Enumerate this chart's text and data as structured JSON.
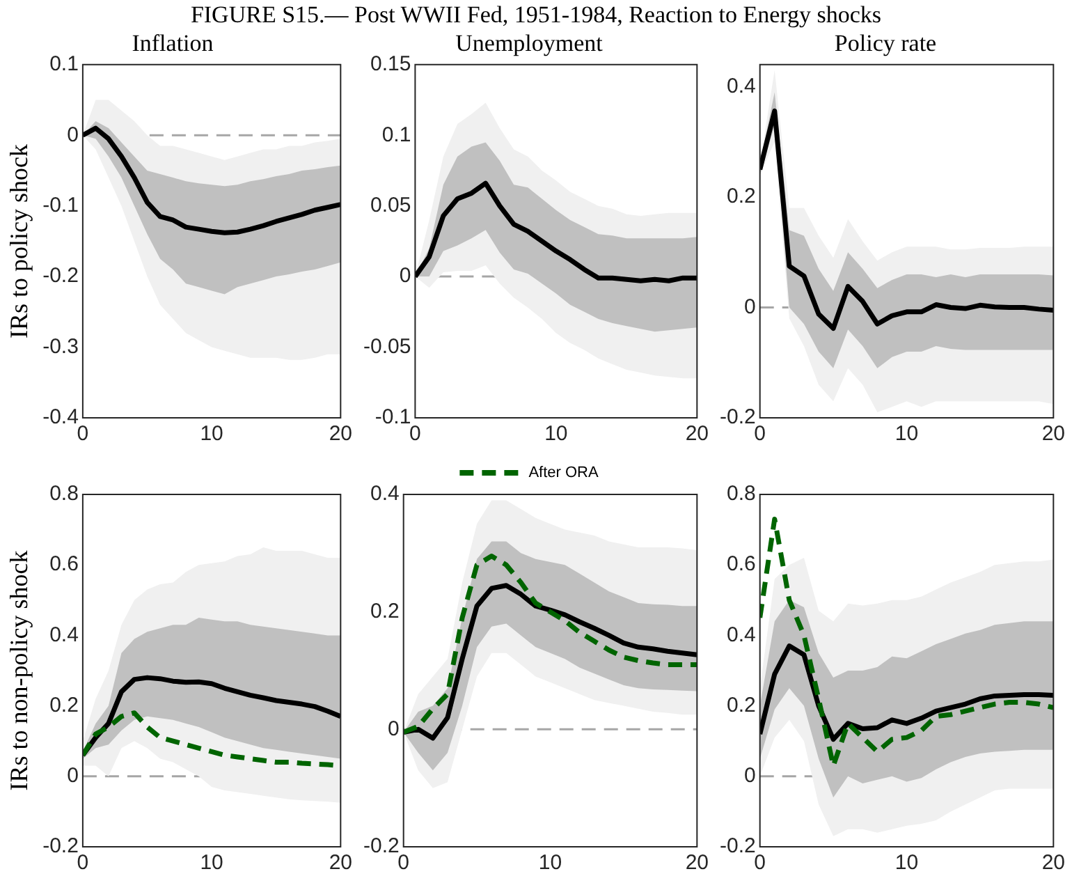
{
  "chart_data": [
    {
      "type": "other",
      "title": "FIGURE S15.— Post WWII Fed, 1951-1984, Reaction to Energy shocks"
    },
    {
      "type": "line",
      "title": "Inflation",
      "ylabel": "IRs to policy shock",
      "marker": "none",
      "grid": false,
      "x": [
        0,
        1,
        2,
        3,
        4,
        5,
        6,
        7,
        8,
        9,
        10,
        11,
        12,
        13,
        14,
        15,
        16,
        17,
        18,
        19,
        20
      ],
      "xlim": [
        0,
        20
      ],
      "xticks": [
        0,
        10,
        20
      ],
      "ylim": [
        -0.4,
        0.1
      ],
      "yticks": [
        -0.4,
        -0.3,
        -0.2,
        -0.1,
        0,
        0.1
      ],
      "ref_lines": [
        {
          "axis": "y",
          "value": 0,
          "color": "#a6a6a6",
          "line_style": "dashed"
        }
      ],
      "series": [
        {
          "color": "#f0f0f0",
          "values": [
            null,
            null,
            null,
            null,
            null,
            null,
            null,
            null,
            null,
            null,
            null,
            null,
            null,
            null,
            null,
            null,
            null,
            null,
            null,
            null,
            null
          ],
          "upper": [
            0,
            0.05,
            0.05,
            0.035,
            0.02,
            0,
            -0.015,
            -0.015,
            -0.02,
            -0.025,
            -0.03,
            -0.035,
            -0.03,
            -0.025,
            -0.02,
            -0.02,
            -0.015,
            -0.015,
            -0.01,
            -0.008,
            -0.005
          ],
          "lower": [
            0,
            -0.02,
            -0.06,
            -0.1,
            -0.15,
            -0.2,
            -0.24,
            -0.26,
            -0.28,
            -0.29,
            -0.3,
            -0.305,
            -0.31,
            -0.315,
            -0.315,
            -0.315,
            -0.318,
            -0.318,
            -0.315,
            -0.31,
            -0.31
          ]
        },
        {
          "color": "#c0c0c0",
          "values": [
            null,
            null,
            null,
            null,
            null,
            null,
            null,
            null,
            null,
            null,
            null,
            null,
            null,
            null,
            null,
            null,
            null,
            null,
            null,
            null,
            null
          ],
          "upper": [
            0,
            0.02,
            0.01,
            -0.01,
            -0.03,
            -0.05,
            -0.055,
            -0.06,
            -0.065,
            -0.068,
            -0.07,
            -0.072,
            -0.07,
            -0.065,
            -0.062,
            -0.058,
            -0.055,
            -0.05,
            -0.048,
            -0.045,
            -0.043
          ],
          "lower": [
            0,
            -0.005,
            -0.03,
            -0.06,
            -0.1,
            -0.14,
            -0.175,
            -0.19,
            -0.21,
            -0.215,
            -0.22,
            -0.225,
            -0.215,
            -0.21,
            -0.205,
            -0.2,
            -0.197,
            -0.193,
            -0.19,
            -0.185,
            -0.18
          ]
        },
        {
          "color": "#000000",
          "values": [
            0,
            0.01,
            -0.005,
            -0.03,
            -0.06,
            -0.095,
            -0.115,
            -0.12,
            -0.13,
            -0.133,
            -0.136,
            -0.138,
            -0.137,
            -0.133,
            -0.128,
            -0.122,
            -0.117,
            -0.112,
            -0.106,
            -0.102,
            -0.098
          ]
        }
      ]
    },
    {
      "type": "line",
      "title": "Unemployment",
      "marker": "none",
      "grid": false,
      "x": [
        0,
        1,
        2,
        3,
        4,
        5,
        6,
        7,
        8,
        9,
        10,
        11,
        12,
        13,
        14,
        15,
        16,
        17,
        18,
        19,
        20
      ],
      "xlim": [
        0,
        20
      ],
      "xticks": [
        0,
        10,
        20
      ],
      "ylim": [
        -0.1,
        0.15
      ],
      "yticks": [
        -0.1,
        -0.05,
        0,
        0.05,
        0.1,
        0.15
      ],
      "ref_lines": [
        {
          "axis": "y",
          "value": 0,
          "color": "#a6a6a6",
          "line_style": "dashed"
        }
      ],
      "series": [
        {
          "color": "#f0f0f0",
          "values": [
            null,
            null,
            null,
            null,
            null,
            null,
            null,
            null,
            null,
            null,
            null,
            null,
            null,
            null,
            null,
            null,
            null,
            null,
            null,
            null,
            null
          ],
          "upper": [
            0,
            0.04,
            0.085,
            0.108,
            0.115,
            0.123,
            0.105,
            0.09,
            0.085,
            0.075,
            0.068,
            0.06,
            0.055,
            0.05,
            0.048,
            0.044,
            0.043,
            0.044,
            0.045,
            0.045,
            0.045
          ],
          "lower": [
            0,
            -0.008,
            0.003,
            0.004,
            0.004,
            0.008,
            -0.005,
            -0.015,
            -0.022,
            -0.03,
            -0.04,
            -0.047,
            -0.052,
            -0.058,
            -0.062,
            -0.066,
            -0.068,
            -0.07,
            -0.071,
            -0.072,
            -0.072
          ]
        },
        {
          "color": "#c0c0c0",
          "values": [
            null,
            null,
            null,
            null,
            null,
            null,
            null,
            null,
            null,
            null,
            null,
            null,
            null,
            null,
            null,
            null,
            null,
            null,
            null,
            null,
            null
          ],
          "upper": [
            0,
            0.02,
            0.065,
            0.085,
            0.092,
            0.095,
            0.082,
            0.065,
            0.063,
            0.055,
            0.047,
            0.04,
            0.035,
            0.03,
            0.029,
            0.027,
            0.027,
            0.027,
            0.027,
            0.027,
            0.028
          ],
          "lower": [
            0,
            0,
            0.018,
            0.022,
            0.027,
            0.033,
            0.017,
            0.005,
            0.002,
            -0.005,
            -0.012,
            -0.02,
            -0.025,
            -0.03,
            -0.033,
            -0.035,
            -0.037,
            -0.039,
            -0.038,
            -0.037,
            -0.036
          ]
        },
        {
          "color": "#000000",
          "values": [
            0,
            0.014,
            0.043,
            0.055,
            0.059,
            0.066,
            0.05,
            0.037,
            0.032,
            0.025,
            0.018,
            0.012,
            0.005,
            -0.001,
            -0.001,
            -0.002,
            -0.003,
            -0.002,
            -0.003,
            -0.001,
            -0.001
          ]
        }
      ]
    },
    {
      "type": "line",
      "title": "Policy rate",
      "marker": "none",
      "grid": false,
      "x": [
        0,
        1,
        2,
        3,
        4,
        5,
        6,
        7,
        8,
        9,
        10,
        11,
        12,
        13,
        14,
        15,
        16,
        17,
        18,
        19,
        20
      ],
      "xlim": [
        0,
        20
      ],
      "xticks": [
        0,
        10,
        20
      ],
      "ylim": [
        -0.2,
        0.44
      ],
      "yticks": [
        -0.2,
        0,
        0.2,
        0.4
      ],
      "ref_lines": [
        {
          "axis": "y",
          "value": 0,
          "color": "#a6a6a6",
          "line_style": "dashed"
        }
      ],
      "series": [
        {
          "color": "#f0f0f0",
          "values": [
            null,
            null,
            null,
            null,
            null,
            null,
            null,
            null,
            null,
            null,
            null,
            null,
            null,
            null,
            null,
            null,
            null,
            null,
            null,
            null,
            null
          ],
          "upper": [
            0.26,
            0.43,
            0.18,
            0.18,
            0.13,
            0.09,
            0.16,
            0.12,
            0.085,
            0.1,
            0.11,
            0.11,
            0.11,
            0.105,
            0.105,
            0.108,
            0.108,
            0.108,
            0.11,
            0.11,
            0.11
          ],
          "lower": [
            0.24,
            0.3,
            -0.02,
            -0.07,
            -0.14,
            -0.17,
            -0.11,
            -0.14,
            -0.19,
            -0.18,
            -0.17,
            -0.18,
            -0.17,
            -0.17,
            -0.17,
            -0.17,
            -0.17,
            -0.17,
            -0.17,
            -0.17,
            -0.175
          ]
        },
        {
          "color": "#c0c0c0",
          "values": [
            null,
            null,
            null,
            null,
            null,
            null,
            null,
            null,
            null,
            null,
            null,
            null,
            null,
            null,
            null,
            null,
            null,
            null,
            null,
            null,
            null
          ],
          "upper": [
            0.26,
            0.39,
            0.14,
            0.13,
            0.07,
            0.03,
            0.1,
            0.07,
            0.035,
            0.05,
            0.06,
            0.06,
            0.055,
            0.06,
            0.055,
            0.06,
            0.06,
            0.06,
            0.06,
            0.06,
            0.058
          ],
          "lower": [
            0.24,
            0.33,
            0,
            -0.03,
            -0.08,
            -0.11,
            -0.04,
            -0.07,
            -0.11,
            -0.09,
            -0.08,
            -0.08,
            -0.07,
            -0.075,
            -0.077,
            -0.077,
            -0.077,
            -0.077,
            -0.077,
            -0.077,
            -0.077
          ]
        },
        {
          "color": "#000000",
          "values": [
            0.25,
            0.356,
            0.075,
            0.057,
            -0.012,
            -0.038,
            0.038,
            0.011,
            -0.03,
            -0.015,
            -0.008,
            -0.008,
            0.005,
            0,
            -0.002,
            0.004,
            0.001,
            0,
            0,
            -0.003,
            -0.005
          ]
        }
      ]
    },
    {
      "type": "line",
      "ylabel": "IRs to non-policy shock",
      "marker": "none",
      "grid": false,
      "x": [
        0,
        1,
        2,
        3,
        4,
        5,
        6,
        7,
        8,
        9,
        10,
        11,
        12,
        13,
        14,
        15,
        16,
        17,
        18,
        19,
        20
      ],
      "xlim": [
        0,
        20
      ],
      "xticks": [
        0,
        10,
        20
      ],
      "ylim": [
        -0.2,
        0.8
      ],
      "yticks": [
        -0.2,
        0,
        0.2,
        0.4,
        0.6,
        0.8
      ],
      "ref_lines": [
        {
          "axis": "y",
          "value": 0,
          "color": "#a6a6a6",
          "line_style": "dashed"
        }
      ],
      "series": [
        {
          "color": "#f0f0f0",
          "values": [
            null,
            null,
            null,
            null,
            null,
            null,
            null,
            null,
            null,
            null,
            null,
            null,
            null,
            null,
            null,
            null,
            null,
            null,
            null,
            null,
            null
          ],
          "upper": [
            0.1,
            0.22,
            0.3,
            0.43,
            0.5,
            0.53,
            0.545,
            0.55,
            0.58,
            0.6,
            0.605,
            0.61,
            0.625,
            0.63,
            0.65,
            0.64,
            0.64,
            0.64,
            0.63,
            0.62,
            0.62
          ],
          "lower": [
            0.03,
            0.03,
            0,
            0.08,
            0.1,
            0.08,
            0.05,
            0.04,
            0.02,
            0,
            -0.03,
            -0.04,
            -0.045,
            -0.05,
            -0.055,
            -0.06,
            -0.065,
            -0.068,
            -0.07,
            -0.072,
            -0.075
          ]
        },
        {
          "color": "#c0c0c0",
          "values": [
            null,
            null,
            null,
            null,
            null,
            null,
            null,
            null,
            null,
            null,
            null,
            null,
            null,
            null,
            null,
            null,
            null,
            null,
            null,
            null,
            null
          ],
          "upper": [
            0.07,
            0.15,
            0.2,
            0.35,
            0.39,
            0.41,
            0.42,
            0.43,
            0.43,
            0.45,
            0.445,
            0.44,
            0.44,
            0.43,
            0.425,
            0.42,
            0.415,
            0.41,
            0.405,
            0.4,
            0.4
          ],
          "lower": [
            0.05,
            0.08,
            0.09,
            0.13,
            0.16,
            0.17,
            0.165,
            0.16,
            0.15,
            0.14,
            0.125,
            0.11,
            0.1,
            0.09,
            0.08,
            0.075,
            0.07,
            0.065,
            0.06,
            0.055,
            0.05
          ]
        },
        {
          "color": "#000000",
          "values": [
            0.06,
            0.11,
            0.15,
            0.24,
            0.275,
            0.28,
            0.277,
            0.27,
            0.267,
            0.268,
            0.263,
            0.25,
            0.24,
            0.23,
            0.223,
            0.215,
            0.21,
            0.205,
            0.198,
            0.185,
            0.17
          ]
        },
        {
          "color": "#006400",
          "line_style": "dashed",
          "values": [
            0.06,
            0.12,
            0.14,
            0.17,
            0.18,
            0.14,
            0.11,
            0.1,
            0.09,
            0.08,
            0.07,
            0.06,
            0.055,
            0.05,
            0.045,
            0.04,
            0.04,
            0.037,
            0.035,
            0.033,
            0.03
          ]
        }
      ]
    },
    {
      "type": "line",
      "marker": "none",
      "grid": false,
      "legend": "top",
      "x": [
        0,
        1,
        2,
        3,
        4,
        5,
        6,
        7,
        8,
        9,
        10,
        11,
        12,
        13,
        14,
        15,
        16,
        17,
        18,
        19,
        20
      ],
      "xlim": [
        0,
        20
      ],
      "xticks": [
        0,
        10,
        20
      ],
      "ylim": [
        -0.2,
        0.4
      ],
      "yticks": [
        -0.2,
        0,
        0.2,
        0.4
      ],
      "ref_lines": [
        {
          "axis": "y",
          "value": 0,
          "color": "#a6a6a6",
          "line_style": "dashed"
        }
      ],
      "series": [
        {
          "color": "#f0f0f0",
          "values": [
            null,
            null,
            null,
            null,
            null,
            null,
            null,
            null,
            null,
            null,
            null,
            null,
            null,
            null,
            null,
            null,
            null,
            null,
            null,
            null,
            null
          ],
          "upper": [
            -0.005,
            0.06,
            0.09,
            0.12,
            0.25,
            0.35,
            0.39,
            0.39,
            0.375,
            0.36,
            0.35,
            0.34,
            0.335,
            0.33,
            0.32,
            0.315,
            0.31,
            0.31,
            0.31,
            0.308,
            0.305
          ],
          "lower": [
            -0.005,
            -0.07,
            -0.1,
            -0.09,
            0,
            0.09,
            0.13,
            0.13,
            0.11,
            0.09,
            0.08,
            0.07,
            0.06,
            0.05,
            0.045,
            0.04,
            0.035,
            0.03,
            0.028,
            0.025,
            0.025
          ]
        },
        {
          "color": "#c0c0c0",
          "values": [
            null,
            null,
            null,
            null,
            null,
            null,
            null,
            null,
            null,
            null,
            null,
            null,
            null,
            null,
            null,
            null,
            null,
            null,
            null,
            null,
            null
          ],
          "upper": [
            -0.005,
            0.03,
            0.04,
            0.07,
            0.19,
            0.29,
            0.32,
            0.32,
            0.3,
            0.29,
            0.285,
            0.28,
            0.265,
            0.25,
            0.235,
            0.225,
            0.215,
            0.213,
            0.212,
            0.21,
            0.21
          ],
          "lower": [
            -0.005,
            -0.04,
            -0.07,
            -0.04,
            0.04,
            0.14,
            0.175,
            0.18,
            0.16,
            0.14,
            0.13,
            0.12,
            0.105,
            0.095,
            0.085,
            0.075,
            0.07,
            0.068,
            0.067,
            0.066,
            0.065
          ]
        },
        {
          "color": "#000000",
          "values": [
            -0.005,
            0,
            -0.015,
            0.02,
            0.12,
            0.21,
            0.24,
            0.245,
            0.23,
            0.21,
            0.203,
            0.195,
            0.183,
            0.172,
            0.16,
            0.147,
            0.14,
            0.137,
            0.133,
            0.13,
            0.127
          ]
        },
        {
          "name": "After ORA",
          "color": "#006400",
          "line_style": "dashed",
          "values": [
            -0.005,
            0.005,
            0.035,
            0.06,
            0.19,
            0.28,
            0.295,
            0.28,
            0.25,
            0.215,
            0.2,
            0.185,
            0.165,
            0.15,
            0.135,
            0.123,
            0.117,
            0.113,
            0.11,
            0.11,
            0.11
          ]
        }
      ]
    },
    {
      "type": "line",
      "marker": "none",
      "grid": false,
      "x": [
        0,
        1,
        2,
        3,
        4,
        5,
        6,
        7,
        8,
        9,
        10,
        11,
        12,
        13,
        14,
        15,
        16,
        17,
        18,
        19,
        20
      ],
      "xlim": [
        0,
        20
      ],
      "xticks": [
        0,
        10,
        20
      ],
      "ylim": [
        -0.2,
        0.8
      ],
      "yticks": [
        -0.2,
        0,
        0.2,
        0.4,
        0.6,
        0.8
      ],
      "ref_lines": [
        {
          "axis": "y",
          "value": 0,
          "color": "#a6a6a6",
          "line_style": "dashed"
        }
      ],
      "series": [
        {
          "color": "#f0f0f0",
          "values": [
            null,
            null,
            null,
            null,
            null,
            null,
            null,
            null,
            null,
            null,
            null,
            null,
            null,
            null,
            null,
            null,
            null,
            null,
            null,
            null,
            null
          ],
          "upper": [
            0.25,
            0.56,
            0.6,
            0.62,
            0.47,
            0.44,
            0.49,
            0.485,
            0.49,
            0.5,
            0.5,
            0.51,
            0.53,
            0.55,
            0.565,
            0.58,
            0.6,
            0.605,
            0.61,
            0.61,
            0.615
          ],
          "lower": [
            0,
            0.11,
            0.16,
            0.1,
            -0.08,
            -0.17,
            -0.15,
            -0.15,
            -0.16,
            -0.15,
            -0.14,
            -0.135,
            -0.125,
            -0.1,
            -0.08,
            -0.06,
            -0.04,
            -0.035,
            -0.035,
            -0.035,
            -0.035
          ]
        },
        {
          "color": "#c0c0c0",
          "values": [
            null,
            null,
            null,
            null,
            null,
            null,
            null,
            null,
            null,
            null,
            null,
            null,
            null,
            null,
            null,
            null,
            null,
            null,
            null,
            null,
            null
          ],
          "upper": [
            0.2,
            0.44,
            0.5,
            0.48,
            0.35,
            0.28,
            0.3,
            0.3,
            0.31,
            0.34,
            0.335,
            0.355,
            0.375,
            0.39,
            0.405,
            0.415,
            0.43,
            0.435,
            0.44,
            0.44,
            0.44
          ],
          "lower": [
            0.05,
            0.19,
            0.25,
            0.2,
            0.05,
            -0.06,
            0,
            -0.02,
            -0.01,
            0,
            -0.015,
            -0.005,
            0.02,
            0.04,
            0.055,
            0.065,
            0.07,
            0.072,
            0.075,
            0.075,
            0.075
          ]
        },
        {
          "color": "#000000",
          "values": [
            0.12,
            0.29,
            0.37,
            0.345,
            0.2,
            0.105,
            0.15,
            0.135,
            0.138,
            0.16,
            0.15,
            0.165,
            0.185,
            0.195,
            0.205,
            0.22,
            0.228,
            0.23,
            0.232,
            0.232,
            0.23
          ]
        },
        {
          "color": "#006400",
          "line_style": "dashed",
          "values": [
            0.45,
            0.73,
            0.5,
            0.4,
            0.22,
            0.03,
            0.15,
            0.11,
            0.07,
            0.105,
            0.11,
            0.13,
            0.17,
            0.175,
            0.185,
            0.195,
            0.205,
            0.21,
            0.21,
            0.205,
            0.195
          ]
        }
      ]
    }
  ]
}
